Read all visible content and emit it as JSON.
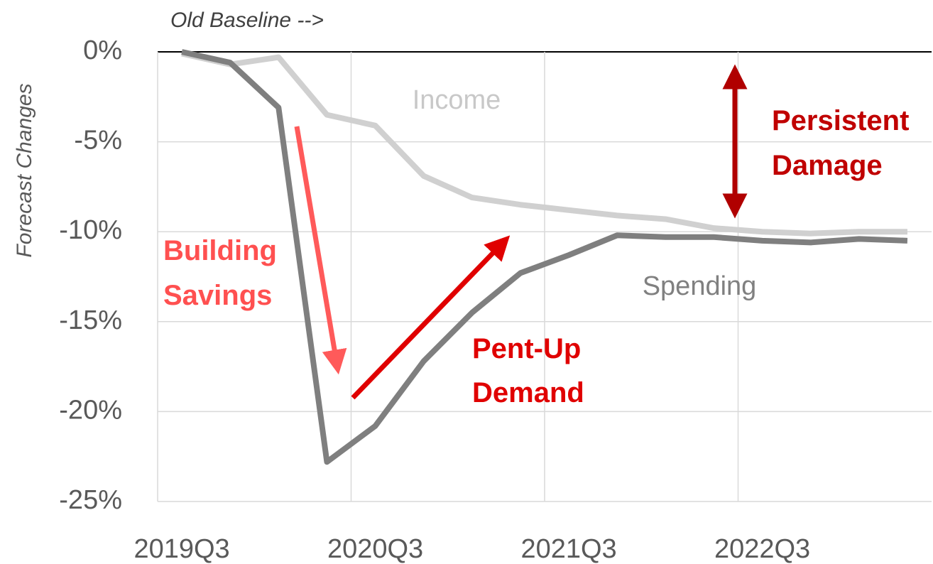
{
  "chart_data": {
    "type": "line",
    "title": "Old Baseline -->",
    "y_label": "Forecast Changes",
    "categories": [
      "2019Q3",
      null,
      null,
      null,
      "2020Q3",
      null,
      null,
      null,
      "2021Q3",
      null,
      null,
      null,
      "2022Q3",
      null,
      null,
      null
    ],
    "series": [
      {
        "name": "Income",
        "color": "#d0d0d0",
        "values": [
          -0.1,
          -0.7,
          -0.3,
          -3.5,
          -4.1,
          -6.9,
          -8.1,
          -8.5,
          -8.8,
          -9.1,
          -9.3,
          -9.8,
          -10.0,
          -10.1,
          -10.0,
          -10.0
        ]
      },
      {
        "name": "Spending",
        "color": "#7f7f7f",
        "values": [
          0,
          -0.6,
          -3.1,
          -22.8,
          -20.8,
          -17.2,
          -14.5,
          -12.3,
          -11.3,
          -10.2,
          -10.3,
          -10.3,
          -10.5,
          -10.6,
          -10.4,
          -10.5
        ]
      }
    ],
    "ylim": [
      -25,
      0
    ],
    "yticks": [
      {
        "value": 0,
        "label": "0%"
      },
      {
        "value": -5,
        "label": "-5%"
      },
      {
        "value": -10,
        "label": "-10%"
      },
      {
        "value": -15,
        "label": "-15%"
      },
      {
        "value": -20,
        "label": "-20%"
      },
      {
        "value": -25,
        "label": "-25%"
      }
    ],
    "grid": true,
    "annotations": [
      [
        "Building",
        "Savings"
      ],
      [
        "Pent-Up",
        "Demand"
      ],
      [
        "Persistent",
        "Damage"
      ]
    ]
  }
}
